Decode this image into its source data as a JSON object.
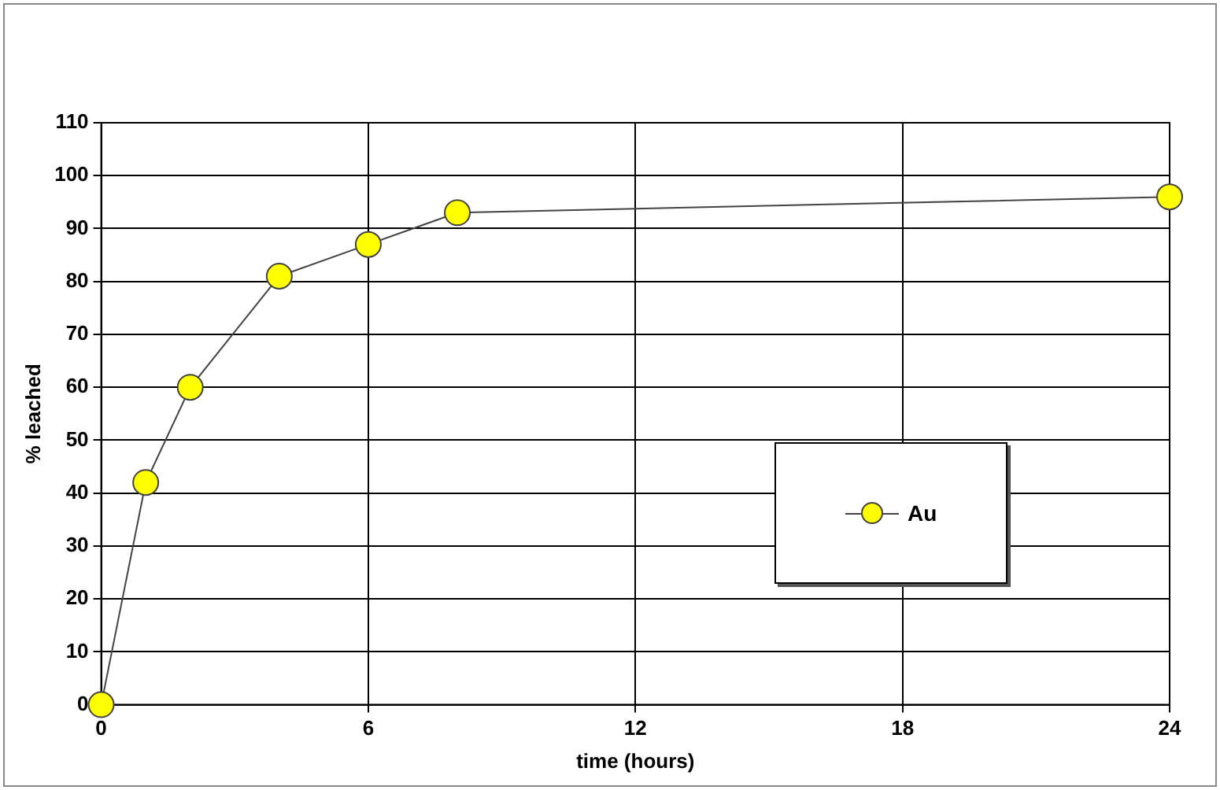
{
  "chart_data": {
    "type": "line",
    "xlabel": "time (hours)",
    "ylabel": "% leached",
    "x": [
      0,
      1,
      2,
      4,
      6,
      8,
      24
    ],
    "series": [
      {
        "name": "Au",
        "color": "#ffff00",
        "values": [
          0,
          42,
          60,
          81,
          87,
          93,
          96
        ]
      }
    ],
    "xlim": [
      0,
      24
    ],
    "xticks": [
      0,
      6,
      12,
      18,
      24
    ],
    "ylim": [
      0,
      110
    ],
    "yticks": [
      0,
      10,
      20,
      30,
      40,
      50,
      60,
      70,
      80,
      90,
      100,
      110
    ],
    "grid": true,
    "legend": "right",
    "marker": "circle",
    "line_style": "solid"
  }
}
